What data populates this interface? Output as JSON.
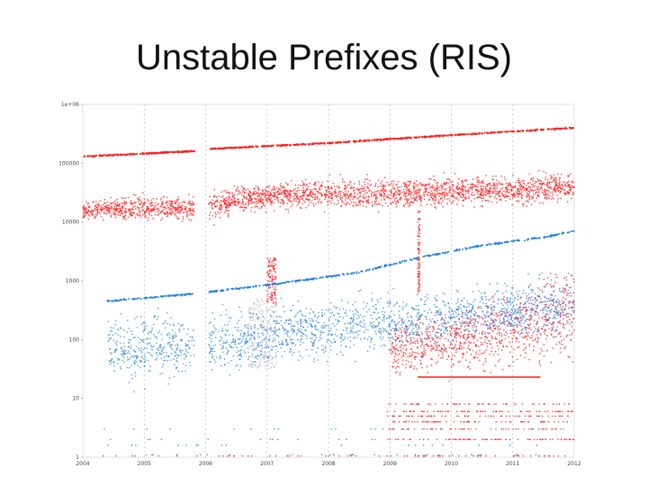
{
  "slide": {
    "title": "Unstable Prefixes (RIS)"
  },
  "chart_data": {
    "type": "scatter",
    "title": "",
    "xlabel": "",
    "ylabel": "",
    "x_scale": "time",
    "y_scale": "log",
    "xlim": [
      2004,
      2012
    ],
    "ylim": [
      1,
      1000000
    ],
    "x_tick_labels": [
      "2004",
      "2005",
      "2006",
      "2007",
      "2008",
      "2009",
      "2010",
      "2011",
      "2012"
    ],
    "x_tick_values": [
      2004,
      2005,
      2006,
      2007,
      2008,
      2009,
      2010,
      2011,
      2012
    ],
    "y_tick_labels": [
      "1",
      "10",
      "100",
      "1000",
      "10000",
      "100000",
      "1e+06"
    ],
    "y_tick_values": [
      1,
      10,
      100,
      1000,
      10000,
      100000,
      1000000
    ],
    "grid": "vertical dotted lines at each year",
    "legend": "none",
    "colors": {
      "red_series": "#ff1a1a",
      "blue_series": "#1e7fe0",
      "gap_series": "#9a9ab0"
    },
    "gaps": [
      [
        2005.82,
        2006.05
      ]
    ],
    "series": [
      {
        "color": "red",
        "x_range": [
          2004,
          2012
        ],
        "upper_envelope": {
          "x": [
            2004,
            2005.8,
            2006.05,
            2008,
            2010,
            2012
          ],
          "y": [
            130000,
            160000,
            175000,
            220000,
            300000,
            400000
          ]
        },
        "bulk_band": {
          "x": [
            2004,
            2005.2,
            2005.8,
            2006.1,
            2007,
            2008,
            2009,
            2010,
            2011,
            2012
          ],
          "low": [
            10000,
            10000,
            10000,
            10000,
            15000,
            15000,
            15000,
            18000,
            18000,
            20000
          ],
          "high": [
            25000,
            30000,
            30000,
            40000,
            50000,
            60000,
            60000,
            65000,
            65000,
            80000
          ]
        },
        "secondary_band": {
          "x": [
            2009,
            2010,
            2011,
            2012
          ],
          "low": [
            20,
            20,
            30,
            30
          ],
          "high": [
            250,
            400,
            800,
            3500
          ]
        },
        "line_segment": {
          "x": [
            2009.45,
            2010.4,
            2011.45
          ],
          "y": [
            23,
            23,
            23
          ]
        }
      },
      {
        "color": "blue",
        "x_range": [
          2004.4,
          2012
        ],
        "upper_envelope": {
          "x": [
            2004.4,
            2005.8,
            2007.2,
            2008.5,
            2009.5,
            2010.5,
            2011.5,
            2012
          ],
          "y": [
            450,
            600,
            900,
            1400,
            2500,
            4000,
            5500,
            7000
          ]
        },
        "bulk_band": {
          "x": [
            2004.4,
            2005,
            2005.8,
            2007,
            2008,
            2009,
            2010,
            2011,
            2012
          ],
          "low": [
            15,
            15,
            20,
            30,
            40,
            50,
            60,
            80,
            100
          ],
          "high": [
            300,
            400,
            300,
            500,
            600,
            700,
            900,
            1200,
            1500
          ]
        }
      }
    ]
  }
}
